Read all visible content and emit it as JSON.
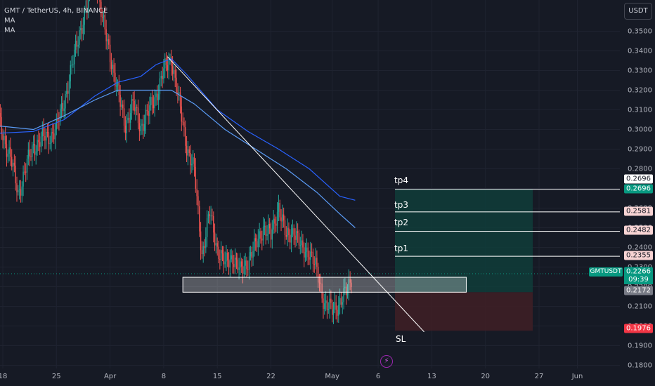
{
  "legend": {
    "title": "GMT / TetherUS, 4h, BINANCE",
    "ma1": "MA",
    "ma2": "MA"
  },
  "currency": "USDT",
  "price_axis": [
    "0.3500",
    "0.3400",
    "0.3300",
    "0.3200",
    "0.3100",
    "0.3000",
    "0.2900",
    "0.2800",
    "0.2700",
    "0.2600",
    "0.2500",
    "0.2400",
    "0.2300",
    "0.2200",
    "0.2100",
    "0.2000",
    "0.1900",
    "0.1800"
  ],
  "date_axis": [
    "18",
    "25",
    "Apr",
    "8",
    "15",
    "22",
    "May",
    "6",
    "13",
    "20",
    "27",
    "Jun"
  ],
  "date_axis_values": [
    18,
    25,
    32,
    39,
    46,
    53,
    61,
    67,
    74,
    81,
    88,
    93
  ],
  "targets": [
    {
      "label": "tp4",
      "price": "0.2696"
    },
    {
      "label": "tp3",
      "price": "0.2581"
    },
    {
      "label": "tp2",
      "price": "0.2482"
    },
    {
      "label": "tp1",
      "price": "0.2355"
    },
    {
      "label": "SL",
      "price": "0.1976"
    }
  ],
  "entry_price": "0.2172",
  "current": {
    "symbol": "GMTUSDT",
    "price": "0.2266",
    "countdown": "09:39"
  },
  "zone": {
    "low": 0.2172,
    "high": 0.2248,
    "from": 41.5,
    "to": 78.5
  },
  "colors": {
    "up": "#26a69a",
    "down": "#ef5350",
    "ma_fast": "#2962ff",
    "ma_slow": "#5b9cf6",
    "profit": "#0f3d3a",
    "loss": "#3d1f26",
    "trendline": "#ffffff"
  },
  "chart_data": {
    "type": "candlestick",
    "pair": "GMT / TetherUS",
    "interval": "4h",
    "exchange": "BINANCE",
    "ylim": [
      0.175,
      0.357
    ],
    "close_path": [
      [
        17,
        0.311
      ],
      [
        19,
        0.285
      ],
      [
        20,
        0.268
      ],
      [
        22,
        0.292
      ],
      [
        24,
        0.297
      ],
      [
        25,
        0.3
      ],
      [
        26,
        0.315
      ],
      [
        27,
        0.331
      ],
      [
        28,
        0.35
      ],
      [
        29,
        0.362
      ],
      [
        30,
        0.382
      ],
      [
        31,
        0.355
      ],
      [
        32,
        0.339
      ],
      [
        33,
        0.318
      ],
      [
        34,
        0.303
      ],
      [
        35,
        0.312
      ],
      [
        36,
        0.302
      ],
      [
        37,
        0.308
      ],
      [
        38,
        0.318
      ],
      [
        39,
        0.329
      ],
      [
        40,
        0.337
      ],
      [
        41,
        0.313
      ],
      [
        42,
        0.292
      ],
      [
        43,
        0.278
      ],
      [
        44,
        0.237
      ],
      [
        45,
        0.257
      ],
      [
        46,
        0.24
      ],
      [
        47,
        0.231
      ],
      [
        48,
        0.236
      ],
      [
        49,
        0.227
      ],
      [
        50,
        0.234
      ],
      [
        51,
        0.24
      ],
      [
        52,
        0.251
      ],
      [
        53,
        0.245
      ],
      [
        54,
        0.262
      ],
      [
        55,
        0.244
      ],
      [
        56,
        0.25
      ],
      [
        57,
        0.238
      ],
      [
        58,
        0.239
      ],
      [
        59,
        0.227
      ],
      [
        60,
        0.212
      ],
      [
        61,
        0.207
      ],
      [
        62,
        0.213
      ],
      [
        63,
        0.217
      ],
      [
        63.5,
        0.225
      ]
    ],
    "ma_fast": [
      [
        17,
        0.298
      ],
      [
        22,
        0.299
      ],
      [
        26,
        0.305
      ],
      [
        30,
        0.317
      ],
      [
        33,
        0.324
      ],
      [
        36,
        0.327
      ],
      [
        38,
        0.333
      ],
      [
        40,
        0.336
      ],
      [
        42,
        0.328
      ],
      [
        46,
        0.31
      ],
      [
        50,
        0.299
      ],
      [
        54,
        0.29
      ],
      [
        58,
        0.28
      ],
      [
        62,
        0.266
      ],
      [
        64,
        0.264
      ]
    ],
    "ma_slow": [
      [
        17,
        0.302
      ],
      [
        22,
        0.3
      ],
      [
        26,
        0.307
      ],
      [
        30,
        0.315
      ],
      [
        33,
        0.32
      ],
      [
        36,
        0.32
      ],
      [
        40,
        0.32
      ],
      [
        43,
        0.313
      ],
      [
        47,
        0.3
      ],
      [
        51,
        0.29
      ],
      [
        55,
        0.28
      ],
      [
        59,
        0.268
      ],
      [
        62,
        0.257
      ],
      [
        64,
        0.25
      ]
    ]
  }
}
